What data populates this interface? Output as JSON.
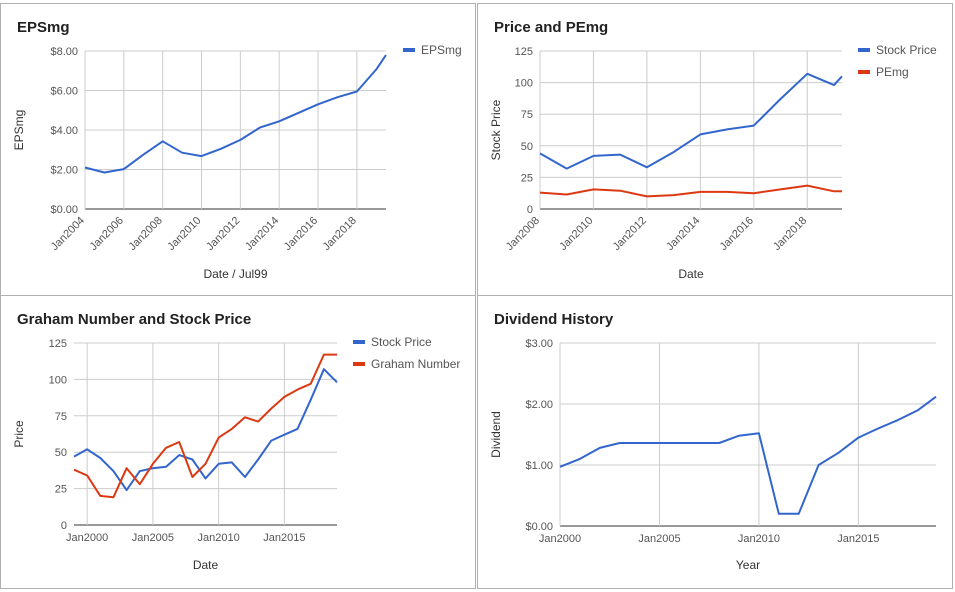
{
  "colors": {
    "blue": "#3366cc",
    "red": "#dc3912",
    "grid": "#cccccc",
    "axis": "#333333"
  },
  "chart_data": [
    {
      "type": "line",
      "title": "EPSmg",
      "xlabel": "Date / Jul99",
      "ylabel": "EPSmg",
      "ylim": [
        0,
        8
      ],
      "yticks": [
        "$0.00",
        "$2.00",
        "$4.00",
        "$6.00",
        "$8.00"
      ],
      "xticks": [
        "Jan2004",
        "Jan2006",
        "Jan2008",
        "Jan2010",
        "Jan2012",
        "Jan2014",
        "Jan2016",
        "Jan2018"
      ],
      "xlim": [
        2004.0,
        2019.5
      ],
      "grid": true,
      "legend_position": "right",
      "series": [
        {
          "name": "EPSmg",
          "color": "#3366cc",
          "x": [
            2004.0,
            2005.0,
            2006.0,
            2007.0,
            2008.0,
            2009.0,
            2010.0,
            2011.0,
            2012.0,
            2013.0,
            2014.0,
            2015.0,
            2016.0,
            2017.0,
            2018.0,
            2019.0,
            2019.5
          ],
          "y": [
            2.1,
            1.85,
            2.02,
            2.75,
            3.43,
            2.85,
            2.68,
            3.05,
            3.5,
            4.12,
            4.44,
            4.87,
            5.3,
            5.66,
            5.95,
            7.07,
            7.8
          ]
        }
      ]
    },
    {
      "type": "line",
      "title": "Price and PEmg",
      "xlabel": "Date",
      "ylabel": "Stock Price",
      "ylim": [
        0,
        125
      ],
      "yticks": [
        "0",
        "25",
        "50",
        "75",
        "100",
        "125"
      ],
      "xticks": [
        "Jan2008",
        "Jan2010",
        "Jan2012",
        "Jan2014",
        "Jan2016",
        "Jan2018"
      ],
      "xlim": [
        2008.0,
        2019.3
      ],
      "grid": true,
      "legend_position": "right",
      "series": [
        {
          "name": "Stock Price",
          "color": "#3366cc",
          "x": [
            2008.0,
            2009.0,
            2010.0,
            2011.0,
            2012.0,
            2013.0,
            2014.0,
            2015.0,
            2016.0,
            2017.0,
            2018.0,
            2019.0,
            2019.3
          ],
          "y": [
            44,
            32,
            42,
            43,
            33,
            45,
            59,
            63,
            66,
            87,
            107,
            98,
            105
          ]
        },
        {
          "name": "PEmg",
          "color": "#dc3912",
          "x": [
            2008.0,
            2009.0,
            2010.0,
            2011.0,
            2012.0,
            2013.0,
            2014.0,
            2015.0,
            2016.0,
            2017.0,
            2018.0,
            2019.0,
            2019.3
          ],
          "y": [
            13,
            11.5,
            15.5,
            14.5,
            10,
            11,
            13.5,
            13.5,
            12.5,
            15.5,
            18.5,
            14,
            14
          ]
        }
      ]
    },
    {
      "type": "line",
      "title": "Graham Number and Stock Price",
      "xlabel": "Date",
      "ylabel": "Price",
      "ylim": [
        0,
        125
      ],
      "yticks": [
        "0",
        "25",
        "50",
        "75",
        "100",
        "125"
      ],
      "xticks": [
        "Jan2000",
        "Jan2005",
        "Jan2010",
        "Jan2015"
      ],
      "xlim": [
        1999.0,
        2019.0
      ],
      "grid": true,
      "legend_position": "right",
      "series": [
        {
          "name": "Stock Price",
          "color": "#3366cc",
          "x": [
            1999.0,
            2000.0,
            2001.0,
            2002.0,
            2003.0,
            2004.0,
            2005.0,
            2006.0,
            2007.0,
            2008.0,
            2009.0,
            2010.0,
            2011.0,
            2012.0,
            2013.0,
            2014.0,
            2015.0,
            2016.0,
            2017.0,
            2018.0,
            2019.0
          ],
          "y": [
            47,
            52,
            46,
            37,
            24,
            37,
            39,
            40,
            48,
            45,
            32,
            42,
            43,
            33,
            45,
            58,
            62,
            66,
            86,
            107,
            98
          ]
        },
        {
          "name": "Graham Number",
          "color": "#dc3912",
          "x": [
            1999.0,
            2000.0,
            2001.0,
            2002.0,
            2003.0,
            2004.0,
            2005.0,
            2006.0,
            2007.0,
            2008.0,
            2009.0,
            2010.0,
            2011.0,
            2012.0,
            2013.0,
            2014.0,
            2015.0,
            2016.0,
            2017.0,
            2018.0,
            2019.0
          ],
          "y": [
            38,
            34,
            20,
            19,
            39,
            28,
            42,
            53,
            57,
            33,
            42,
            60,
            66,
            74,
            71,
            80,
            88,
            93,
            97,
            117,
            117
          ]
        }
      ]
    },
    {
      "type": "line",
      "title": "Dividend History",
      "xlabel": "Year",
      "ylabel": "Dividend",
      "ylim": [
        0,
        3
      ],
      "yticks": [
        "$0.00",
        "$1.00",
        "$2.00",
        "$3.00"
      ],
      "xticks": [
        "Jan2000",
        "Jan2005",
        "Jan2010",
        "Jan2015"
      ],
      "xlim": [
        2000.0,
        2018.9
      ],
      "grid": true,
      "series": [
        {
          "name": "Dividend",
          "color": "#3366cc",
          "x": [
            2000.0,
            2001.0,
            2002.0,
            2003.0,
            2004.0,
            2005.0,
            2006.0,
            2007.0,
            2008.0,
            2009.0,
            2010.0,
            2011.0,
            2012.0,
            2013.0,
            2014.0,
            2015.0,
            2016.0,
            2017.0,
            2018.0,
            2018.9
          ],
          "y": [
            0.97,
            1.1,
            1.28,
            1.36,
            1.36,
            1.36,
            1.36,
            1.36,
            1.36,
            1.48,
            1.52,
            0.2,
            0.2,
            1.0,
            1.2,
            1.45,
            1.6,
            1.74,
            1.9,
            2.12
          ]
        }
      ]
    }
  ]
}
